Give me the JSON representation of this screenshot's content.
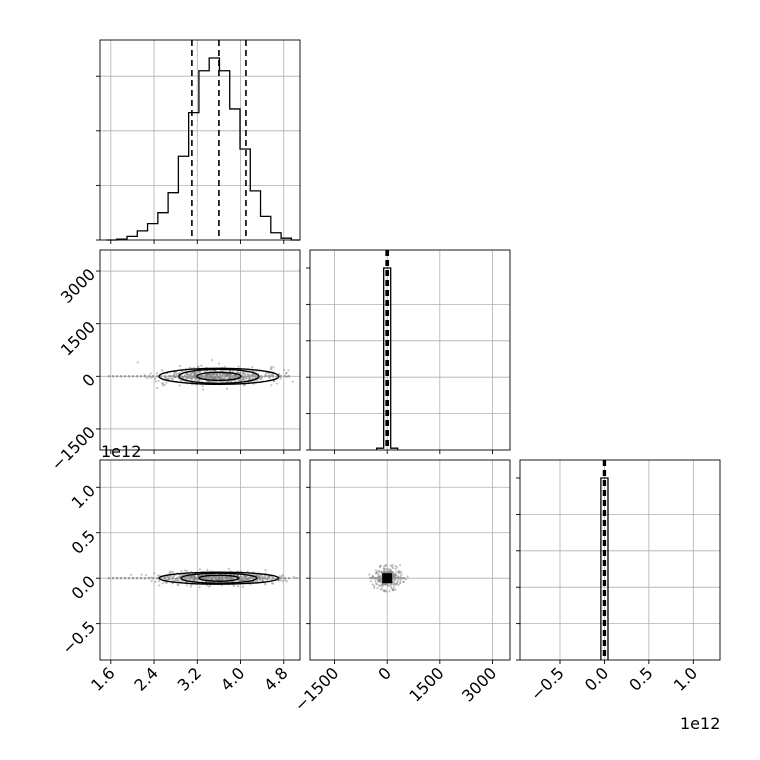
{
  "chart_data": {
    "type": "corner",
    "grid": true,
    "panels": {
      "hist_param1": {
        "type": "histogram-step",
        "xlim": [
          1.4,
          5.1
        ],
        "ylim": [
          0,
          1.0
        ],
        "bins": [
          1.52,
          1.71,
          1.9,
          2.09,
          2.28,
          2.47,
          2.66,
          2.85,
          3.04,
          3.23,
          3.42,
          3.61,
          3.8,
          3.99,
          4.18,
          4.37,
          4.56,
          4.75,
          4.94,
          5.1
        ],
        "counts": [
          0.0,
          0.005,
          0.02,
          0.05,
          0.09,
          0.15,
          0.26,
          0.46,
          0.7,
          0.93,
          1.0,
          0.93,
          0.72,
          0.5,
          0.27,
          0.13,
          0.04,
          0.01,
          0.0
        ],
        "quantiles": [
          3.1,
          3.6,
          4.1
        ]
      },
      "hist_param2": {
        "type": "histogram-step",
        "xlim": [
          -2200,
          3500
        ],
        "ylim": [
          0,
          1.0
        ],
        "bins": [
          -300,
          -100,
          100,
          300
        ],
        "counts": [
          0.01,
          1.0,
          0.01
        ],
        "quantiles": [
          -30,
          0,
          30
        ]
      },
      "hist_param3": {
        "type": "histogram-step",
        "xlim": [
          -0.95,
          1.3
        ],
        "ylim": [
          0,
          1.0
        ],
        "bins": [
          -0.04,
          0.0,
          0.04
        ],
        "counts": [
          1.0,
          1.0
        ],
        "quantiles": [
          -0.01,
          0.0,
          0.01
        ]
      },
      "scatter_p1_p2": {
        "type": "scatter-contour",
        "xlim": [
          1.4,
          5.1
        ],
        "ylim": [
          -2100,
          3600
        ],
        "center": [
          3.6,
          0
        ]
      },
      "scatter_p1_p3": {
        "type": "scatter-contour",
        "xlim": [
          1.4,
          5.1
        ],
        "ylim": [
          -0.9,
          1.3
        ],
        "center": [
          3.6,
          0.0
        ]
      },
      "scatter_p2_p3": {
        "type": "scatter-contour",
        "xlim": [
          -2200,
          3500
        ],
        "ylim": [
          -0.9,
          1.3
        ],
        "center": [
          0,
          0.0
        ]
      }
    },
    "axes": {
      "param1_ticks": [
        "1.6",
        "2.4",
        "3.2",
        "4.0",
        "4.8"
      ],
      "param1_tick_values": [
        1.6,
        2.4,
        3.2,
        4.0,
        4.8
      ],
      "param2_ticks": [
        "−1500",
        "0",
        "1500",
        "3000"
      ],
      "param2_tick_values": [
        -1500,
        0,
        1500,
        3000
      ],
      "param3_ticks": [
        "−0.5",
        "0.0",
        "0.5",
        "1.0"
      ],
      "param3_tick_values": [
        -0.5,
        0.0,
        0.5,
        1.0
      ],
      "offset_left": "1e12",
      "offset_bottom": "1e12"
    }
  }
}
